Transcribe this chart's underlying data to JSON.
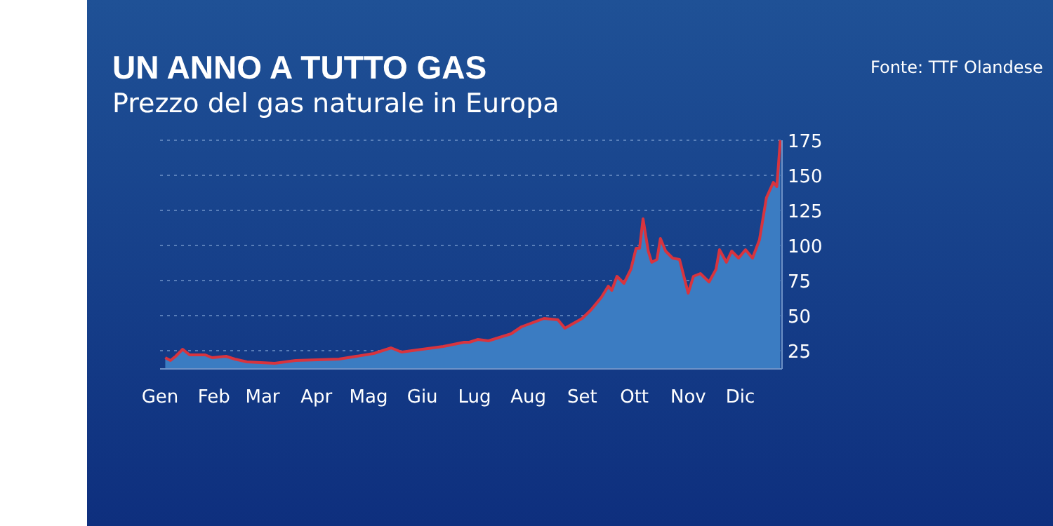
{
  "chart_data": {
    "type": "area",
    "title": "UN ANNO A TUTTO GAS",
    "subtitle": "Prezzo del gas naturale in Europa",
    "annotations": [
      "Fonte: TTF Olandese"
    ],
    "grid": "y",
    "x": [
      "--01-04",
      "--01-07",
      "--01-10",
      "--01-14",
      "--01-18",
      "--01-27",
      "--01-31",
      "--02-08",
      "--02-13",
      "--02-20",
      "--03-08",
      "--03-20",
      "--04-14",
      "--05-04",
      "--05-14",
      "--05-20",
      "--06-01",
      "--06-13",
      "--06-17",
      "--06-25",
      "--06-28",
      "--07-03",
      "--07-09",
      "--07-22",
      "--07-28",
      "--08-10",
      "--08-18",
      "--08-22",
      "--09-01",
      "--09-06",
      "--09-12",
      "--09-16",
      "--09-18",
      "--09-21",
      "--09-25",
      "--09-29",
      "--10-02",
      "--10-04",
      "--10-06",
      "--10-09",
      "--10-11",
      "--10-14",
      "--10-16",
      "--10-19",
      "--10-23",
      "--10-27",
      "--11-01",
      "--11-04",
      "--11-08",
      "--11-13",
      "--11-17",
      "--11-19",
      "--11-23",
      "--11-26",
      "--11-30",
      "--12-04",
      "--12-08",
      "--12-12",
      "--12-16",
      "--12-20",
      "--12-22",
      "--12-24"
    ],
    "series": [
      {
        "color": "#3b7cc2",
        "values": [
          20,
          18,
          21,
          26,
          22,
          22,
          20,
          21,
          19,
          17,
          16,
          18,
          19,
          23,
          27,
          24,
          26,
          28,
          29,
          31,
          31,
          33,
          32,
          37,
          42,
          48,
          47,
          41,
          48,
          54,
          63,
          71,
          68,
          78,
          73,
          83,
          98,
          98,
          119,
          96,
          88,
          90,
          105,
          96,
          91,
          90,
          66,
          78,
          80,
          74,
          83,
          97,
          88,
          96,
          91,
          97,
          91,
          104,
          134,
          145,
          142,
          175
        ]
      },
      {
        "type": "line",
        "color": "#d8343e",
        "values": [
          20,
          18,
          21,
          26,
          22,
          22,
          20,
          21,
          19,
          17,
          16,
          18,
          19,
          23,
          27,
          24,
          26,
          28,
          29,
          31,
          31,
          33,
          32,
          37,
          42,
          48,
          47,
          41,
          48,
          54,
          63,
          71,
          68,
          78,
          73,
          83,
          98,
          98,
          119,
          96,
          88,
          90,
          105,
          96,
          91,
          90,
          66,
          78,
          80,
          74,
          83,
          97,
          88,
          96,
          91,
          97,
          91,
          104,
          134,
          145,
          142,
          175
        ]
      }
    ],
    "xlim": [
      "--01-01",
      "--12-25"
    ],
    "xticks": [
      {
        "value": "--01-01",
        "label": "Gen"
      },
      {
        "value": "--02-01",
        "label": "Feb"
      },
      {
        "value": "--03-01",
        "label": "Mar"
      },
      {
        "value": "--04-01",
        "label": "Apr"
      },
      {
        "value": "--05-01",
        "label": "Mag"
      },
      {
        "value": "--06-01",
        "label": "Giu"
      },
      {
        "value": "--07-01",
        "label": "Lug"
      },
      {
        "value": "--08-01",
        "label": "Aug"
      },
      {
        "value": "--09-01",
        "label": "Set"
      },
      {
        "value": "--10-01",
        "label": "Ott"
      },
      {
        "value": "--11-01",
        "label": "Nov"
      },
      {
        "value": "--12-01",
        "label": "Dic"
      }
    ],
    "ylim": [
      12,
      175
    ],
    "yticks": [
      25,
      50,
      75,
      100,
      125,
      150,
      175
    ]
  }
}
